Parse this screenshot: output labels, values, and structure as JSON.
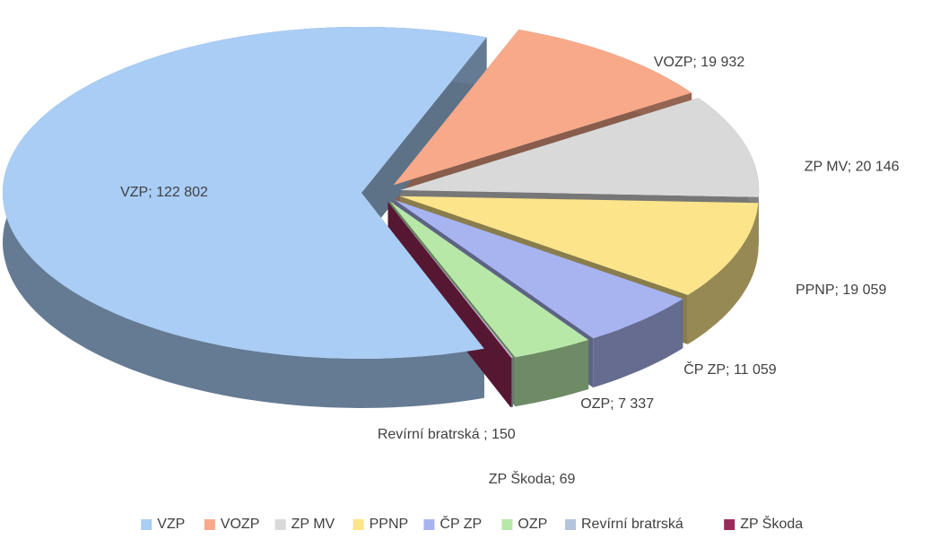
{
  "chart_data": {
    "type": "pie3d",
    "categories": [
      "VZP",
      "VOZP",
      "ZP MV",
      "PPNP",
      "ČP ZP",
      "OZP",
      "Revírní bratrská",
      "ZP Škoda"
    ],
    "values": [
      122802,
      19932,
      20146,
      19059,
      11059,
      7337,
      150,
      69
    ],
    "value_labels": [
      "VZP; 122 802",
      "VOZP; 19 932",
      "ZP MV; 20 146",
      "PPNP; 19 059",
      "ČP ZP; 11 059",
      "OZP; 7 337",
      "Revírní bratrská ; 150",
      "ZP Škoda; 69"
    ],
    "colors": [
      "#a9cdf5",
      "#f7a98a",
      "#d9d9d9",
      "#fbe48a",
      "#a8b4f0",
      "#b8e8a8",
      "#b4c4dc",
      "#9a2a5a"
    ],
    "legend": "bottom"
  }
}
